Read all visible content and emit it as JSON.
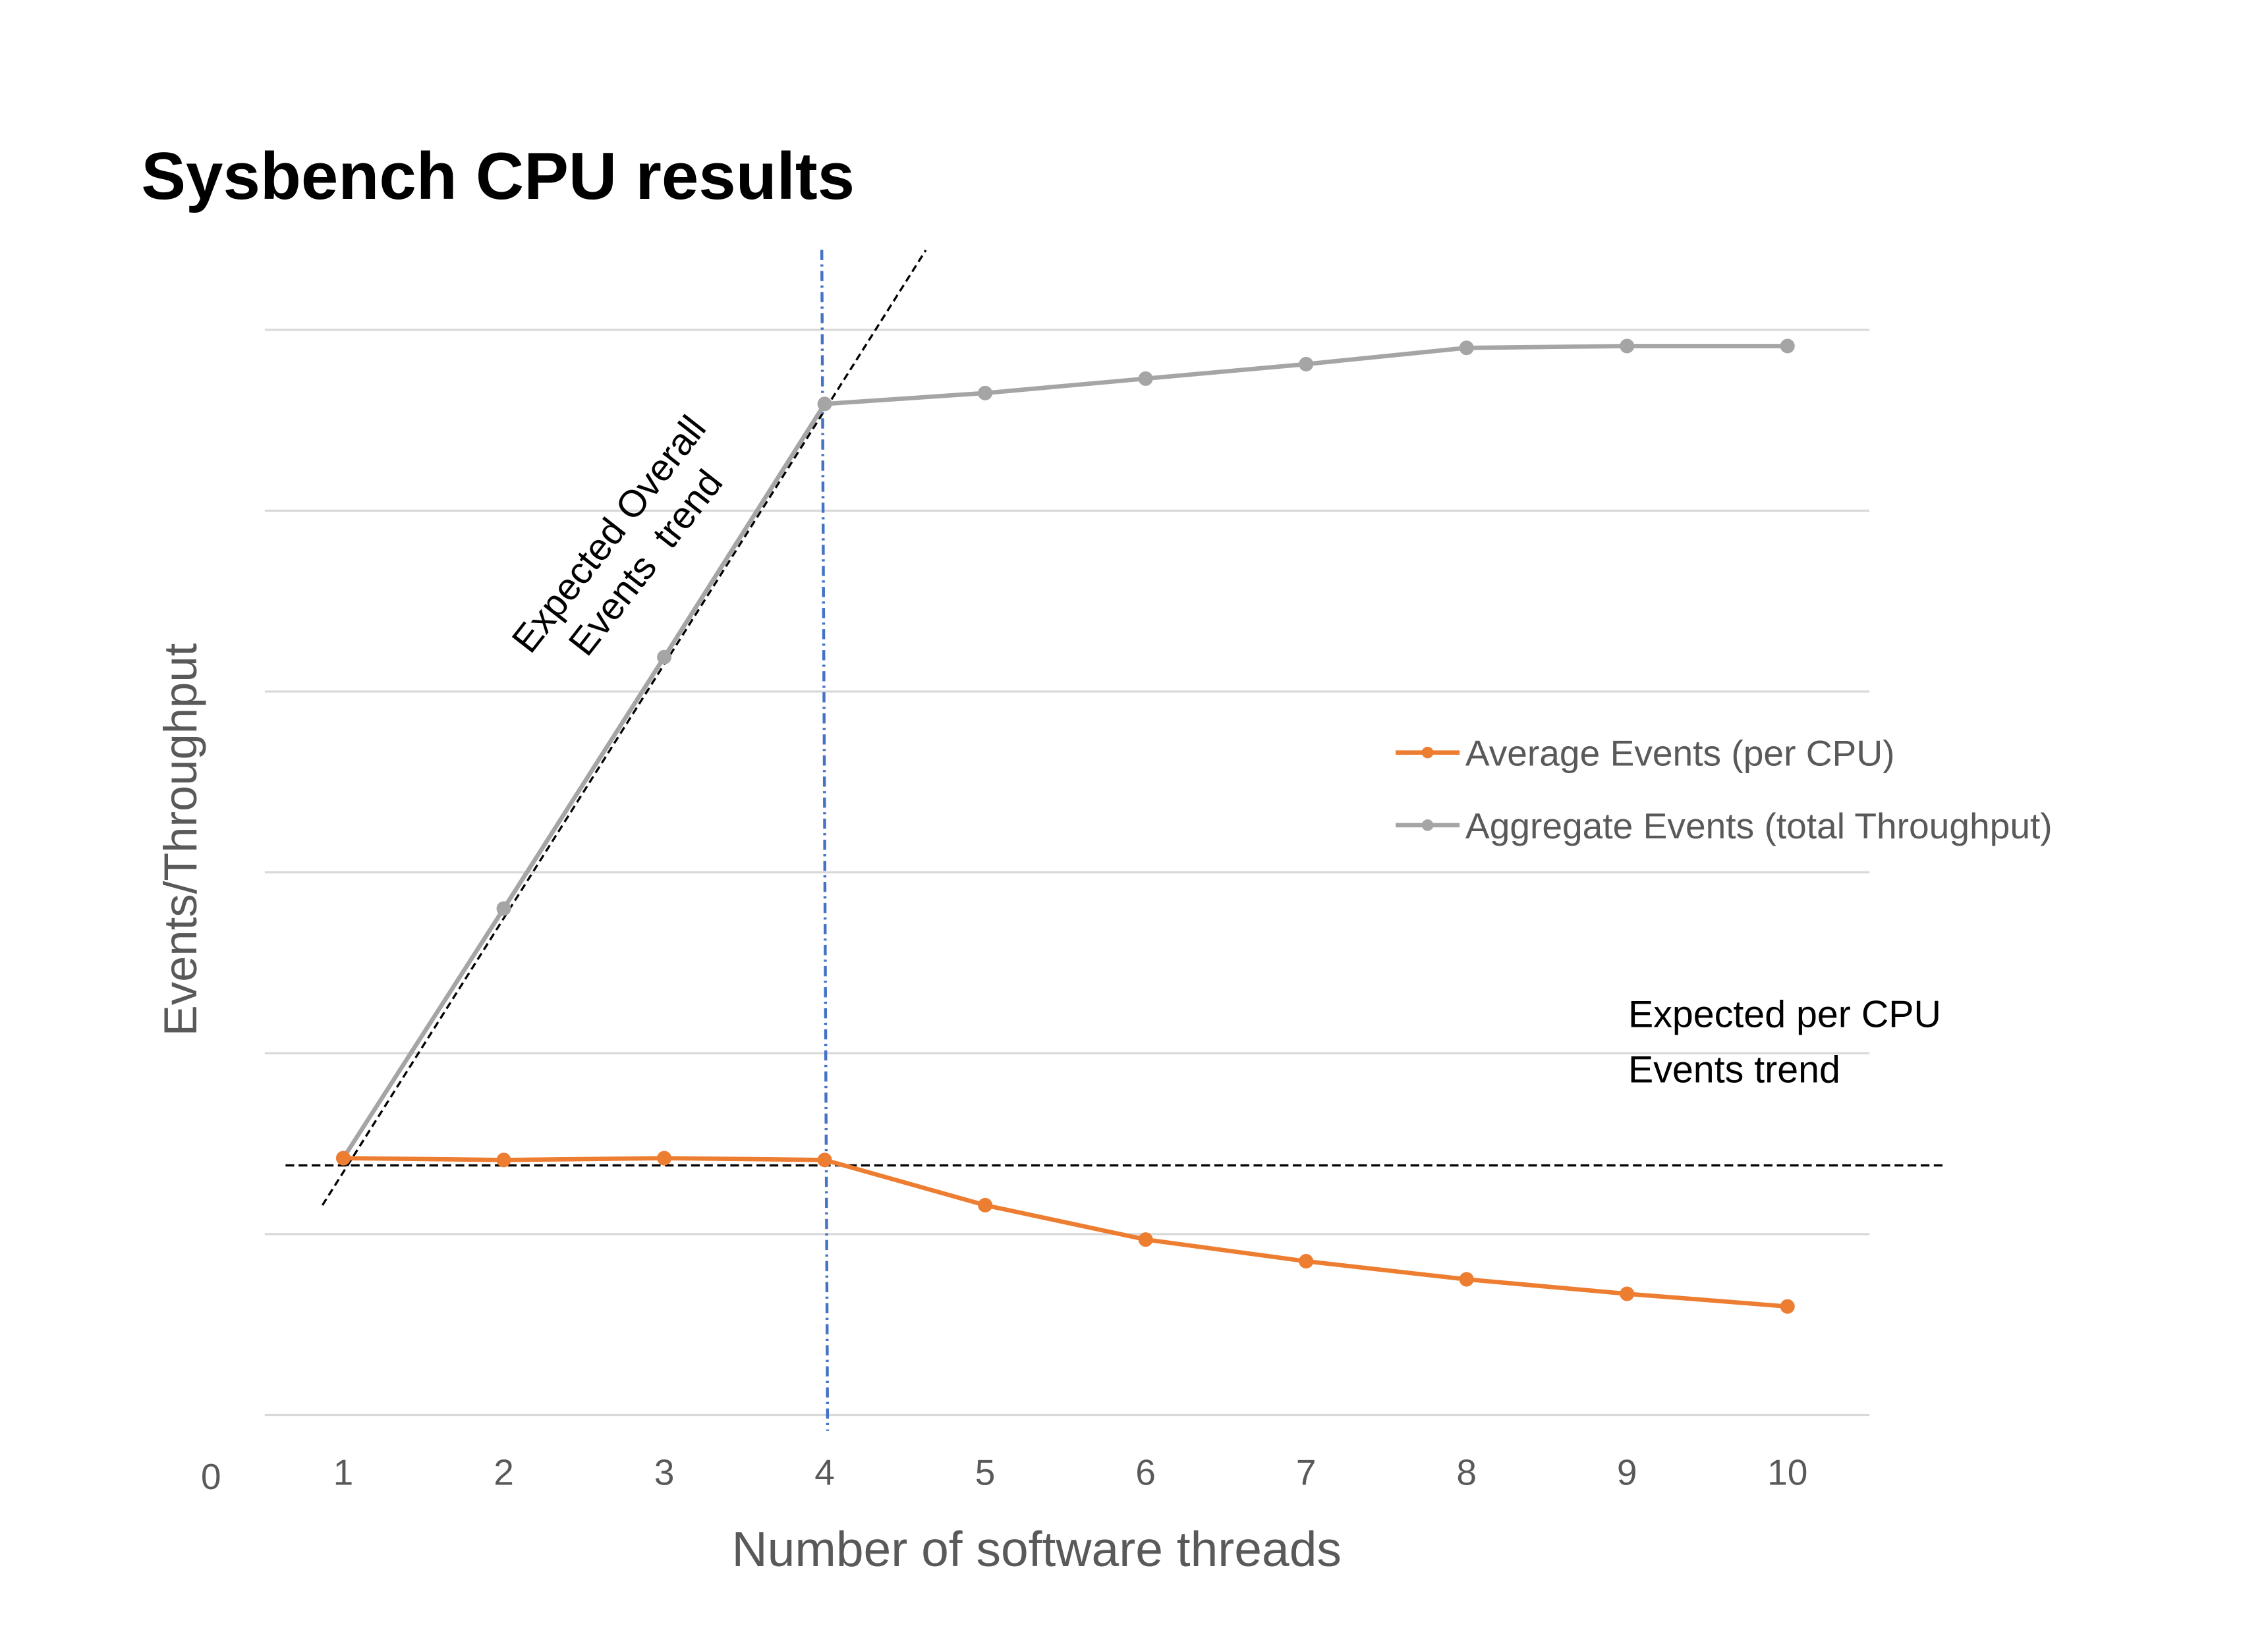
{
  "chart_data": {
    "type": "line",
    "title": "Sysbench CPU results",
    "xlabel": "Number of software threads",
    "ylabel": "Events/Throughput",
    "y_origin_label": "0",
    "x": [
      1,
      2,
      3,
      4,
      5,
      6,
      7,
      8,
      9,
      10
    ],
    "x_tick_labels": [
      "1",
      "2",
      "3",
      "4",
      "5",
      "6",
      "7",
      "8",
      "9",
      "10"
    ],
    "xlim": [
      0.5,
      10.5
    ],
    "ylim": [
      0,
      6
    ],
    "y_tick_labels_shown": false,
    "grid": "horizontal",
    "legend_placement": "right",
    "series": [
      {
        "name": "Average Events (per CPU)",
        "color": "#ED7D31",
        "values": [
          1.42,
          1.41,
          1.42,
          1.41,
          1.16,
          0.97,
          0.85,
          0.75,
          0.67,
          0.6
        ]
      },
      {
        "name": "Aggregate Events (total Throughput)",
        "color": "#A5A5A5",
        "values": [
          1.42,
          2.8,
          4.19,
          5.59,
          5.65,
          5.73,
          5.81,
          5.9,
          5.91,
          5.91
        ]
      }
    ],
    "annotations": {
      "overall_trend": {
        "lines": [
          "Expected Overall",
          "Events  trend"
        ],
        "from": [
          0.87,
          1.16
        ],
        "to": [
          4.63,
          6.44
        ],
        "style": "dashed",
        "color": "#000000"
      },
      "per_cpu_trend": {
        "lines": [
          "Expected per CPU",
          "Events trend"
        ],
        "y": 1.38,
        "from_x": 0.64,
        "to_x": 10.98,
        "style": "dashed",
        "color": "#000000"
      },
      "saturation_marker": {
        "x": 4,
        "style": "dash-dot",
        "color": "#4472C4"
      }
    }
  }
}
